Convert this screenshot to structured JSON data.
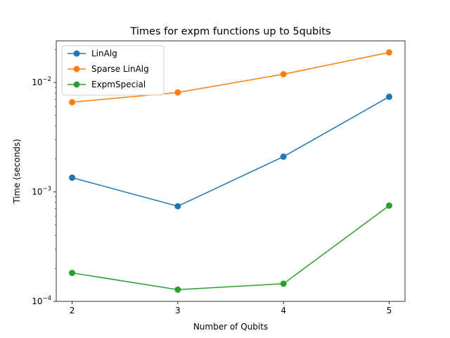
{
  "chart_data": {
    "type": "line",
    "title": "Times for expm functions up to 5qubits",
    "xlabel": "Number of Qubits",
    "ylabel": "Time (seconds)",
    "x": [
      2,
      3,
      4,
      5
    ],
    "x_ticks": [
      "2",
      "3",
      "4",
      "5"
    ],
    "y_scale": "log",
    "ylim": [
      0.0001,
      0.024
    ],
    "y_ticks": [
      {
        "value": 0.0001,
        "base": "10",
        "exp": "−4"
      },
      {
        "value": 0.001,
        "base": "10",
        "exp": "−3"
      },
      {
        "value": 0.01,
        "base": "10",
        "exp": "−2"
      }
    ],
    "grid": false,
    "legend_position": "top-left",
    "series": [
      {
        "name": "LinAlg",
        "color": "#1f77b4",
        "values": [
          0.00135,
          0.00074,
          0.0021,
          0.0074
        ]
      },
      {
        "name": "Sparse LinAlg",
        "color": "#ff7f0e",
        "values": [
          0.0066,
          0.0081,
          0.0119,
          0.0188
        ]
      },
      {
        "name": "ExpmSpecial",
        "color": "#2ca02c",
        "values": [
          0.000182,
          0.000128,
          0.000145,
          0.00075
        ]
      }
    ]
  }
}
